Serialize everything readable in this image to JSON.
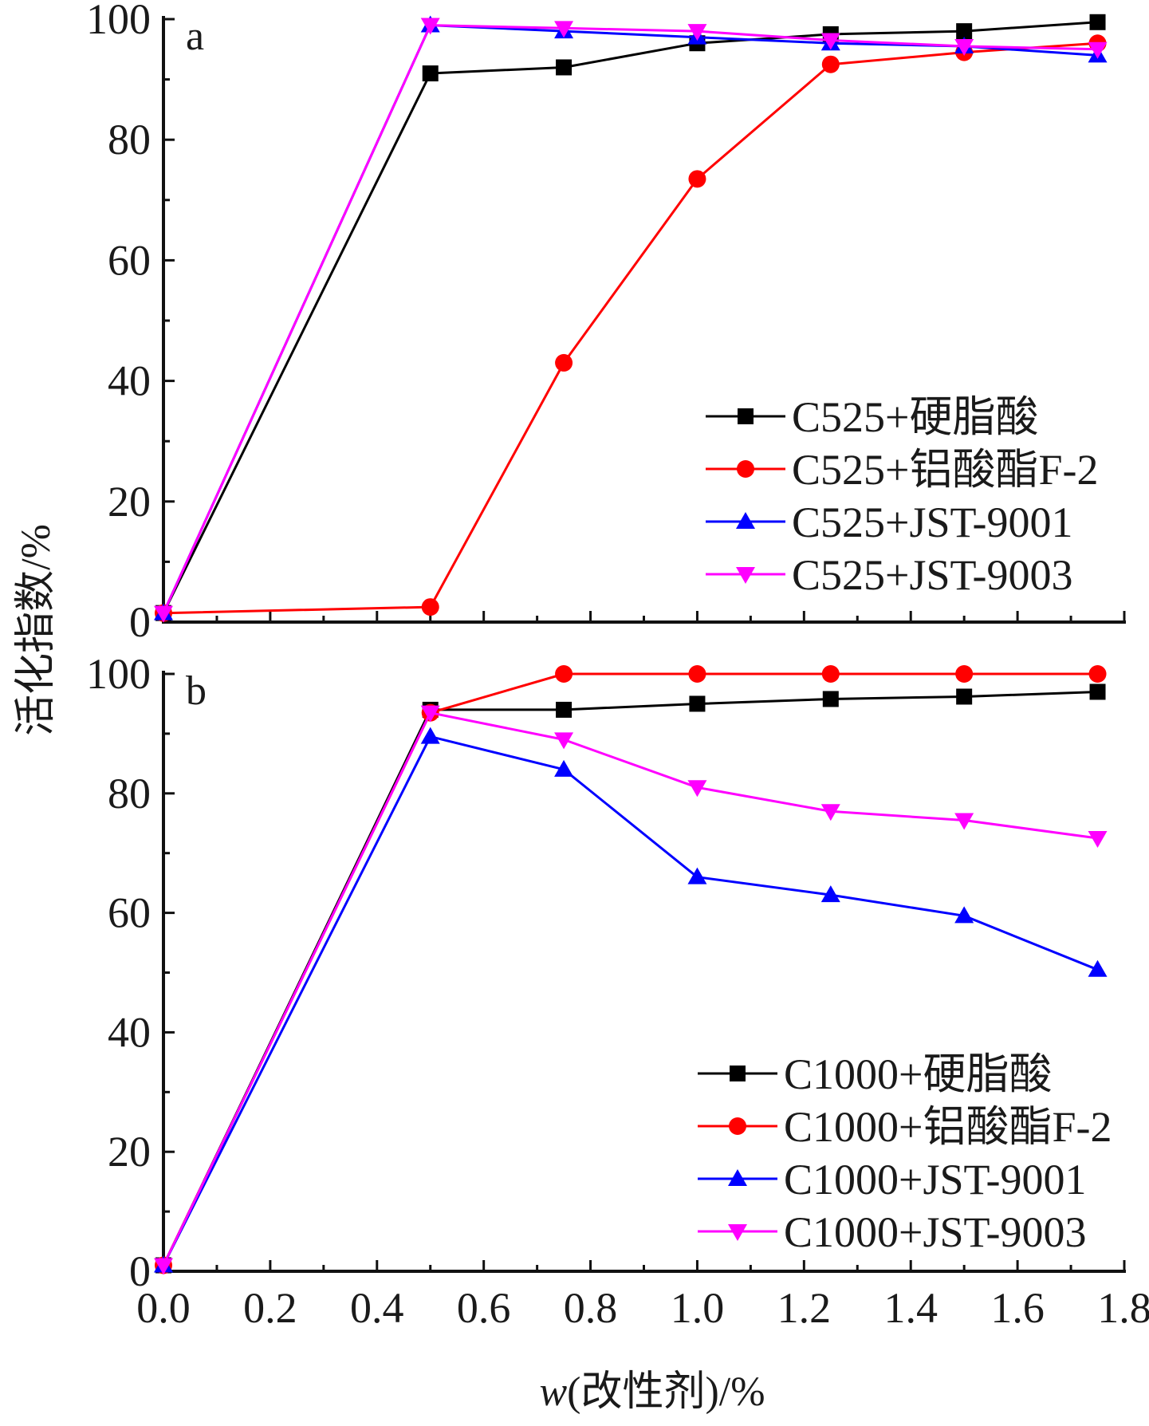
{
  "chart_data": [
    {
      "type": "line",
      "panel_label": "a",
      "x": [
        0.0,
        0.5,
        0.75,
        1.0,
        1.25,
        1.5,
        1.75
      ],
      "xlim": [
        0.0,
        1.8
      ],
      "ylim": [
        0,
        100
      ],
      "x_ticks": [
        "0.0",
        "0.2",
        "0.4",
        "0.6",
        "0.8",
        "1.0",
        "1.2",
        "1.4",
        "1.6",
        "1.8"
      ],
      "y_ticks": [
        "0",
        "20",
        "40",
        "60",
        "80",
        "100"
      ],
      "series": [
        {
          "name": "C525+硬脂酸",
          "color": "#000000",
          "marker": "square",
          "values": [
            1.5,
            91,
            92,
            96,
            97.5,
            98,
            99.5
          ]
        },
        {
          "name": "C525+铝酸酯F-2",
          "color": "#ff0000",
          "marker": "circle",
          "values": [
            1.5,
            2.5,
            43,
            73.5,
            92.5,
            94.5,
            96
          ]
        },
        {
          "name": "C525+JST-9001",
          "color": "#0000ff",
          "marker": "triangle-up",
          "values": [
            1.5,
            99,
            98,
            97,
            96,
            95.5,
            94
          ]
        },
        {
          "name": "C525+JST-9003",
          "color": "#ff00ff",
          "marker": "triangle-down",
          "values": [
            1.5,
            99,
            98.5,
            98,
            96.5,
            95.5,
            95
          ]
        }
      ],
      "legend_position": "bottom-right"
    },
    {
      "type": "line",
      "panel_label": "b",
      "x": [
        0.0,
        0.5,
        0.75,
        1.0,
        1.25,
        1.5,
        1.75
      ],
      "xlim": [
        0.0,
        1.8
      ],
      "ylim": [
        0,
        100
      ],
      "x_ticks": [
        "0.0",
        "0.2",
        "0.4",
        "0.6",
        "0.8",
        "1.0",
        "1.2",
        "1.4",
        "1.6",
        "1.8"
      ],
      "y_ticks": [
        "0",
        "20",
        "40",
        "60",
        "80",
        "100"
      ],
      "series": [
        {
          "name": "C1000+硬脂酸",
          "color": "#000000",
          "marker": "square",
          "values": [
            1,
            94,
            94,
            95,
            95.8,
            96.2,
            97
          ]
        },
        {
          "name": "C1000+铝酸酯F-2",
          "color": "#ff0000",
          "marker": "circle",
          "values": [
            1,
            93.5,
            100,
            100,
            100,
            100,
            100
          ]
        },
        {
          "name": "C1000+JST-9001",
          "color": "#0000ff",
          "marker": "triangle-up",
          "values": [
            1,
            89.5,
            84,
            66,
            63,
            59.5,
            50.5
          ]
        },
        {
          "name": "C1000+JST-9003",
          "color": "#ff00ff",
          "marker": "triangle-down",
          "values": [
            1,
            93.5,
            89,
            81,
            77,
            75.5,
            72.5
          ]
        }
      ],
      "legend_position": "bottom-right"
    }
  ],
  "shared": {
    "ylabel": "活化指数/%",
    "xlabel": "w(改性剂)/%"
  }
}
